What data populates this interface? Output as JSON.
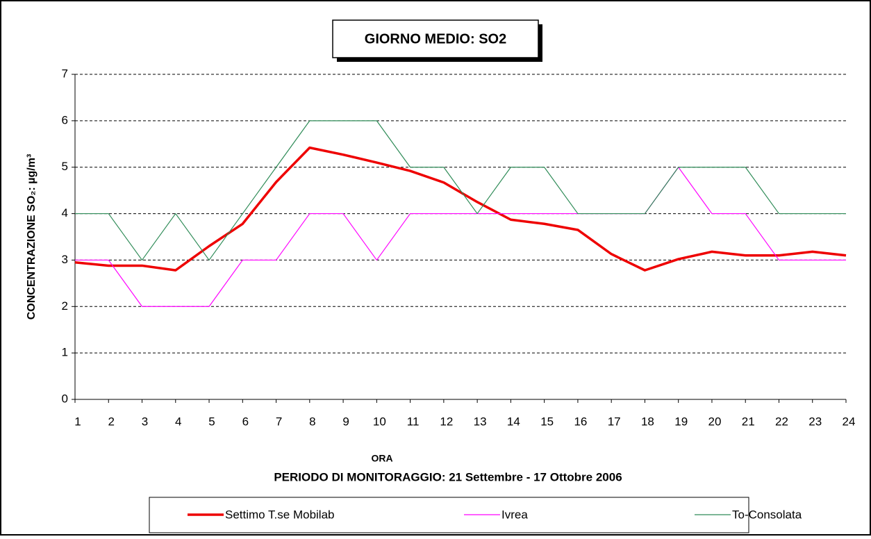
{
  "chart_data": {
    "type": "line",
    "title": "GIORNO MEDIO: SO2",
    "x_label": "ORA",
    "subtitle": "PERIODO DI MONITORAGGIO: 21 Settembre - 17 Ottobre 2006",
    "y_label": "CONCENTRAZIONE SO₂: µg/m³",
    "categories": [
      "1",
      "2",
      "3",
      "4",
      "5",
      "6",
      "7",
      "8",
      "9",
      "10",
      "11",
      "12",
      "13",
      "14",
      "15",
      "16",
      "17",
      "18",
      "19",
      "20",
      "21",
      "22",
      "23",
      "24"
    ],
    "series": [
      {
        "name": "Settimo T.se Mobilab",
        "color": "#ee0000",
        "width": 3.5,
        "values": [
          2.95,
          2.88,
          2.88,
          2.78,
          3.3,
          3.78,
          4.68,
          5.42,
          5.27,
          5.1,
          4.92,
          4.67,
          4.25,
          3.87,
          3.78,
          3.65,
          3.13,
          2.78,
          3.02,
          3.18,
          3.1,
          3.1,
          3.18,
          3.1
        ]
      },
      {
        "name": "Ivrea",
        "color": "#ff00ff",
        "width": 1.2,
        "values": [
          3,
          3,
          2,
          2,
          2,
          3,
          3,
          4,
          4,
          3,
          4,
          4,
          4,
          4,
          4,
          4,
          4,
          4,
          5,
          4,
          4,
          3,
          3,
          3
        ]
      },
      {
        "name": "To-Consolata",
        "color": "#2e8b57",
        "width": 1.2,
        "values": [
          4,
          4,
          3,
          4,
          3,
          4,
          5,
          6,
          6,
          6,
          5,
          5,
          4,
          5,
          5,
          4,
          4,
          4,
          5,
          5,
          5,
          4,
          4,
          4
        ]
      }
    ],
    "ylim": [
      0,
      7
    ],
    "yticks": [
      0,
      1,
      2,
      3,
      4,
      5,
      6,
      7
    ],
    "grid": true,
    "legend": "bottom"
  }
}
